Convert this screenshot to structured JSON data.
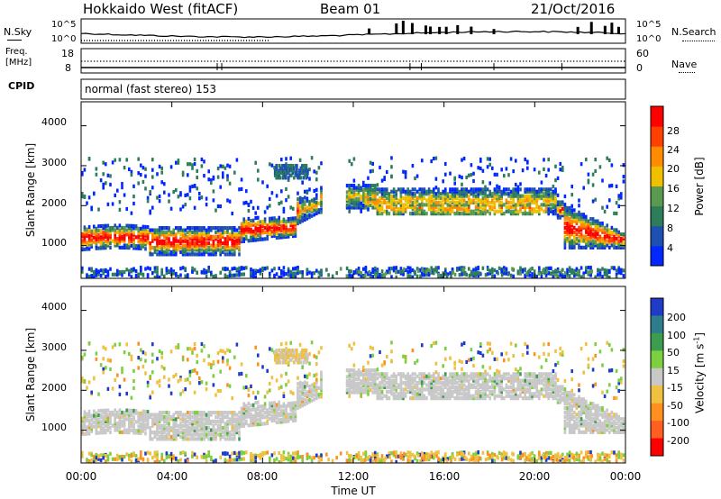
{
  "header": {
    "station": "Hokkaido West (fitACF)",
    "beam": "Beam 01",
    "date": "21/Oct/2016"
  },
  "noise_panel": {
    "left_label": "N.Sky",
    "right_label": "N.Search",
    "left_ticks": [
      "10^5",
      "10^0"
    ],
    "right_ticks": [
      "10^5",
      "10^0"
    ]
  },
  "freq_panel": {
    "left_label_1": "Freq.",
    "left_label_2": "[MHz]",
    "left_ticks": [
      "18",
      "8"
    ],
    "right_label": "Nave",
    "right_ticks": [
      "60",
      "0"
    ]
  },
  "cpid_panel": {
    "label": "CPID",
    "text": "normal (fast stereo) 153"
  },
  "chart_data": [
    {
      "type": "heatmap",
      "quantity": "Power",
      "xlabel": "",
      "ylabel": "Slant Range [km]",
      "x_range_hours": [
        0,
        24
      ],
      "ylim": [
        180,
        4600
      ],
      "y_ticks": [
        "1000",
        "2000",
        "3000",
        "4000"
      ],
      "colorbar": {
        "label": "Power [dB]",
        "ticks": [
          "4",
          "8",
          "12",
          "16",
          "20",
          "24",
          "28"
        ],
        "colors": [
          "#0028ff",
          "#1e50b4",
          "#2e7d5a",
          "#5a9a50",
          "#f0c000",
          "#ff8c00",
          "#ff4000",
          "#ff0000"
        ]
      },
      "echo_bands_slant_range_km": [
        {
          "hours": [
            0,
            3
          ],
          "range": [
            850,
            1550
          ]
        },
        {
          "hours": [
            3,
            7
          ],
          "range": [
            750,
            1500
          ]
        },
        {
          "hours": [
            7,
            9.5
          ],
          "range": [
            1100,
            1700
          ]
        },
        {
          "hours": [
            10.5,
            13
          ],
          "range": [
            1900,
            2500
          ]
        },
        {
          "hours": [
            13,
            20.5
          ],
          "range": [
            1750,
            2450
          ]
        },
        {
          "hours": [
            21,
            24
          ],
          "range": [
            850,
            1950
          ]
        }
      ]
    },
    {
      "type": "heatmap",
      "quantity": "Velocity",
      "xlabel": "Time UT",
      "ylabel": "Slant Range [km]",
      "x_range_hours": [
        0,
        24
      ],
      "x_ticks": [
        "00:00",
        "04:00",
        "08:00",
        "12:00",
        "16:00",
        "20:00",
        "00:00"
      ],
      "ylim": [
        180,
        4600
      ],
      "y_ticks": [
        "1000",
        "2000",
        "3000",
        "4000"
      ],
      "colorbar": {
        "label": "Velocity [m s^-1]",
        "ticks": [
          "200",
          "100",
          "50",
          "15",
          "-15",
          "-50",
          "-100",
          "-200"
        ],
        "colors": [
          "#1e3cc8",
          "#2e7d8c",
          "#3c9c50",
          "#7cd040",
          "#c8c8c8",
          "#f0c040",
          "#ff9020",
          "#ff6020",
          "#ff0000"
        ]
      }
    }
  ]
}
